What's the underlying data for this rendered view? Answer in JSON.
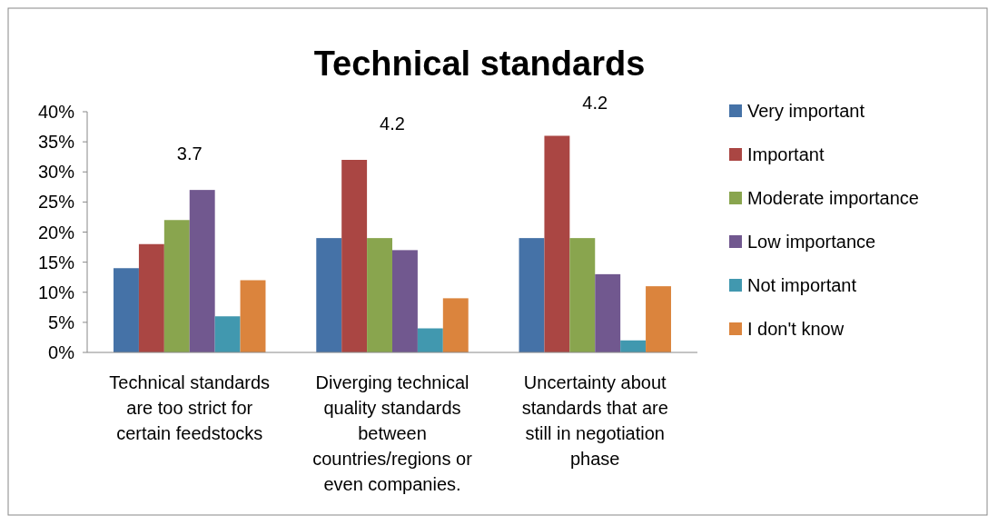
{
  "chart_data": {
    "type": "bar",
    "title": "Technical standards",
    "categories": [
      "Technical standards are too strict for certain feedstocks",
      "Diverging technical quality standards between countries/regions or even companies.",
      "Uncertainty about standards that are still in negotiation phase"
    ],
    "series": [
      {
        "name": "Very important",
        "color": "#4572a7",
        "values": [
          14,
          19,
          19
        ]
      },
      {
        "name": "Important",
        "color": "#aa4643",
        "values": [
          18,
          32,
          36
        ]
      },
      {
        "name": "Moderate importance",
        "color": "#89a54e",
        "values": [
          22,
          19,
          19
        ]
      },
      {
        "name": "Low importance",
        "color": "#71588f",
        "values": [
          27,
          17,
          13
        ]
      },
      {
        "name": "Not important",
        "color": "#4198af",
        "values": [
          6,
          4,
          2
        ]
      },
      {
        "name": "I don't know",
        "color": "#db843d",
        "values": [
          12,
          9,
          11
        ]
      }
    ],
    "ylim": [
      0,
      40
    ],
    "yticks": [
      {
        "value": 0,
        "label": "0%"
      },
      {
        "value": 5,
        "label": "5%"
      },
      {
        "value": 10,
        "label": "10%"
      },
      {
        "value": 15,
        "label": "15%"
      },
      {
        "value": 20,
        "label": "20%"
      },
      {
        "value": 25,
        "label": "25%"
      },
      {
        "value": 30,
        "label": "30%"
      },
      {
        "value": 35,
        "label": "35%"
      },
      {
        "value": 40,
        "label": "40%"
      }
    ],
    "annotations": [
      "3.7",
      "4.2",
      "4.2"
    ],
    "legend": "right",
    "grid": false
  }
}
